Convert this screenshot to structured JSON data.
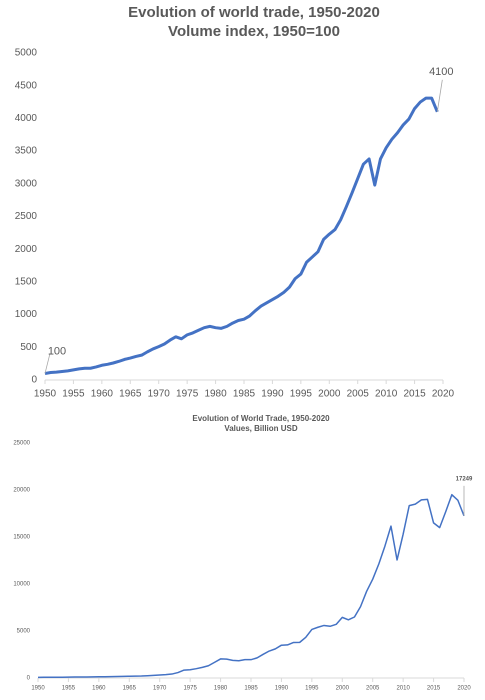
{
  "chart_data": [
    {
      "type": "line",
      "title": "Evolution of world trade, 1950-2020",
      "subtitle": "Volume index, 1950=100",
      "x": [
        1950,
        1951,
        1952,
        1953,
        1954,
        1955,
        1956,
        1957,
        1958,
        1959,
        1960,
        1961,
        1962,
        1963,
        1964,
        1965,
        1966,
        1967,
        1968,
        1969,
        1970,
        1971,
        1972,
        1973,
        1974,
        1975,
        1976,
        1977,
        1978,
        1979,
        1980,
        1981,
        1982,
        1983,
        1984,
        1985,
        1986,
        1987,
        1988,
        1989,
        1990,
        1991,
        1992,
        1993,
        1994,
        1995,
        1996,
        1997,
        1998,
        1999,
        2000,
        2001,
        2002,
        2003,
        2004,
        2005,
        2006,
        2007,
        2008,
        2009,
        2010,
        2011,
        2012,
        2013,
        2014,
        2015,
        2016,
        2017,
        2018,
        2019
      ],
      "values": [
        100,
        115,
        120,
        130,
        140,
        155,
        170,
        180,
        180,
        200,
        225,
        240,
        260,
        285,
        315,
        335,
        360,
        380,
        430,
        475,
        510,
        550,
        610,
        660,
        630,
        690,
        720,
        760,
        800,
        820,
        800,
        790,
        820,
        870,
        910,
        930,
        980,
        1060,
        1130,
        1180,
        1230,
        1280,
        1340,
        1420,
        1550,
        1620,
        1800,
        1880,
        1960,
        2150,
        2230,
        2300,
        2450,
        2650,
        2860,
        3080,
        3300,
        3380,
        2980,
        3380,
        3550,
        3680,
        3780,
        3900,
        3990,
        4150,
        4250,
        4310,
        4310,
        4100
      ],
      "color": "#4472c4",
      "xlim": [
        1950,
        2020
      ],
      "xticks": [
        1950,
        1955,
        1960,
        1965,
        1970,
        1975,
        1980,
        1985,
        1990,
        1995,
        2000,
        2005,
        2010,
        2015,
        2020
      ],
      "ylim": [
        0,
        5000
      ],
      "yticks": [
        0,
        500,
        1000,
        1500,
        2000,
        2500,
        3000,
        3500,
        4000,
        4500,
        5000
      ],
      "grid": false,
      "annotations": [
        {
          "x": 1950,
          "y": 100
        },
        {
          "x": 2019,
          "y": 4100
        }
      ]
    },
    {
      "type": "line",
      "title": "Evolution of World Trade, 1950-2020",
      "subtitle": "Values, Billion USD",
      "x": [
        1950,
        1951,
        1952,
        1953,
        1954,
        1955,
        1956,
        1957,
        1958,
        1959,
        1960,
        1961,
        1962,
        1963,
        1964,
        1965,
        1966,
        1967,
        1968,
        1969,
        1970,
        1971,
        1972,
        1973,
        1974,
        1975,
        1976,
        1977,
        1978,
        1979,
        1980,
        1981,
        1982,
        1983,
        1984,
        1985,
        1986,
        1987,
        1988,
        1989,
        1990,
        1991,
        1992,
        1993,
        1994,
        1995,
        1996,
        1997,
        1998,
        1999,
        2000,
        2001,
        2002,
        2003,
        2004,
        2005,
        2006,
        2007,
        2008,
        2009,
        2010,
        2011,
        2012,
        2013,
        2014,
        2015,
        2016,
        2017,
        2018,
        2019,
        2020
      ],
      "values": [
        62,
        80,
        80,
        80,
        85,
        95,
        105,
        112,
        108,
        115,
        130,
        135,
        142,
        155,
        175,
        190,
        205,
        215,
        240,
        275,
        317,
        354,
        420,
        580,
        840,
        880,
        990,
        1130,
        1300,
        1660,
        2030,
        2010,
        1880,
        1840,
        1950,
        1950,
        2140,
        2520,
        2870,
        3100,
        3490,
        3520,
        3780,
        3790,
        4330,
        5170,
        5400,
        5590,
        5500,
        5710,
        6450,
        6190,
        6490,
        7590,
        9220,
        10510,
        12130,
        14020,
        16160,
        12560,
        15300,
        18340,
        18500,
        18950,
        19000,
        16500,
        16000,
        17700,
        19500,
        18900,
        17249
      ],
      "color": "#4472c4",
      "xlim": [
        1950,
        2020
      ],
      "xticks": [
        1950,
        1955,
        1960,
        1965,
        1970,
        1975,
        1980,
        1985,
        1990,
        1995,
        2000,
        2005,
        2010,
        2015,
        2020
      ],
      "ylim": [
        0,
        25000
      ],
      "yticks": [
        0,
        5000,
        10000,
        15000,
        20000,
        25000
      ],
      "grid": false,
      "annotations": [
        {
          "x": 2020,
          "y": 17249
        }
      ]
    }
  ]
}
